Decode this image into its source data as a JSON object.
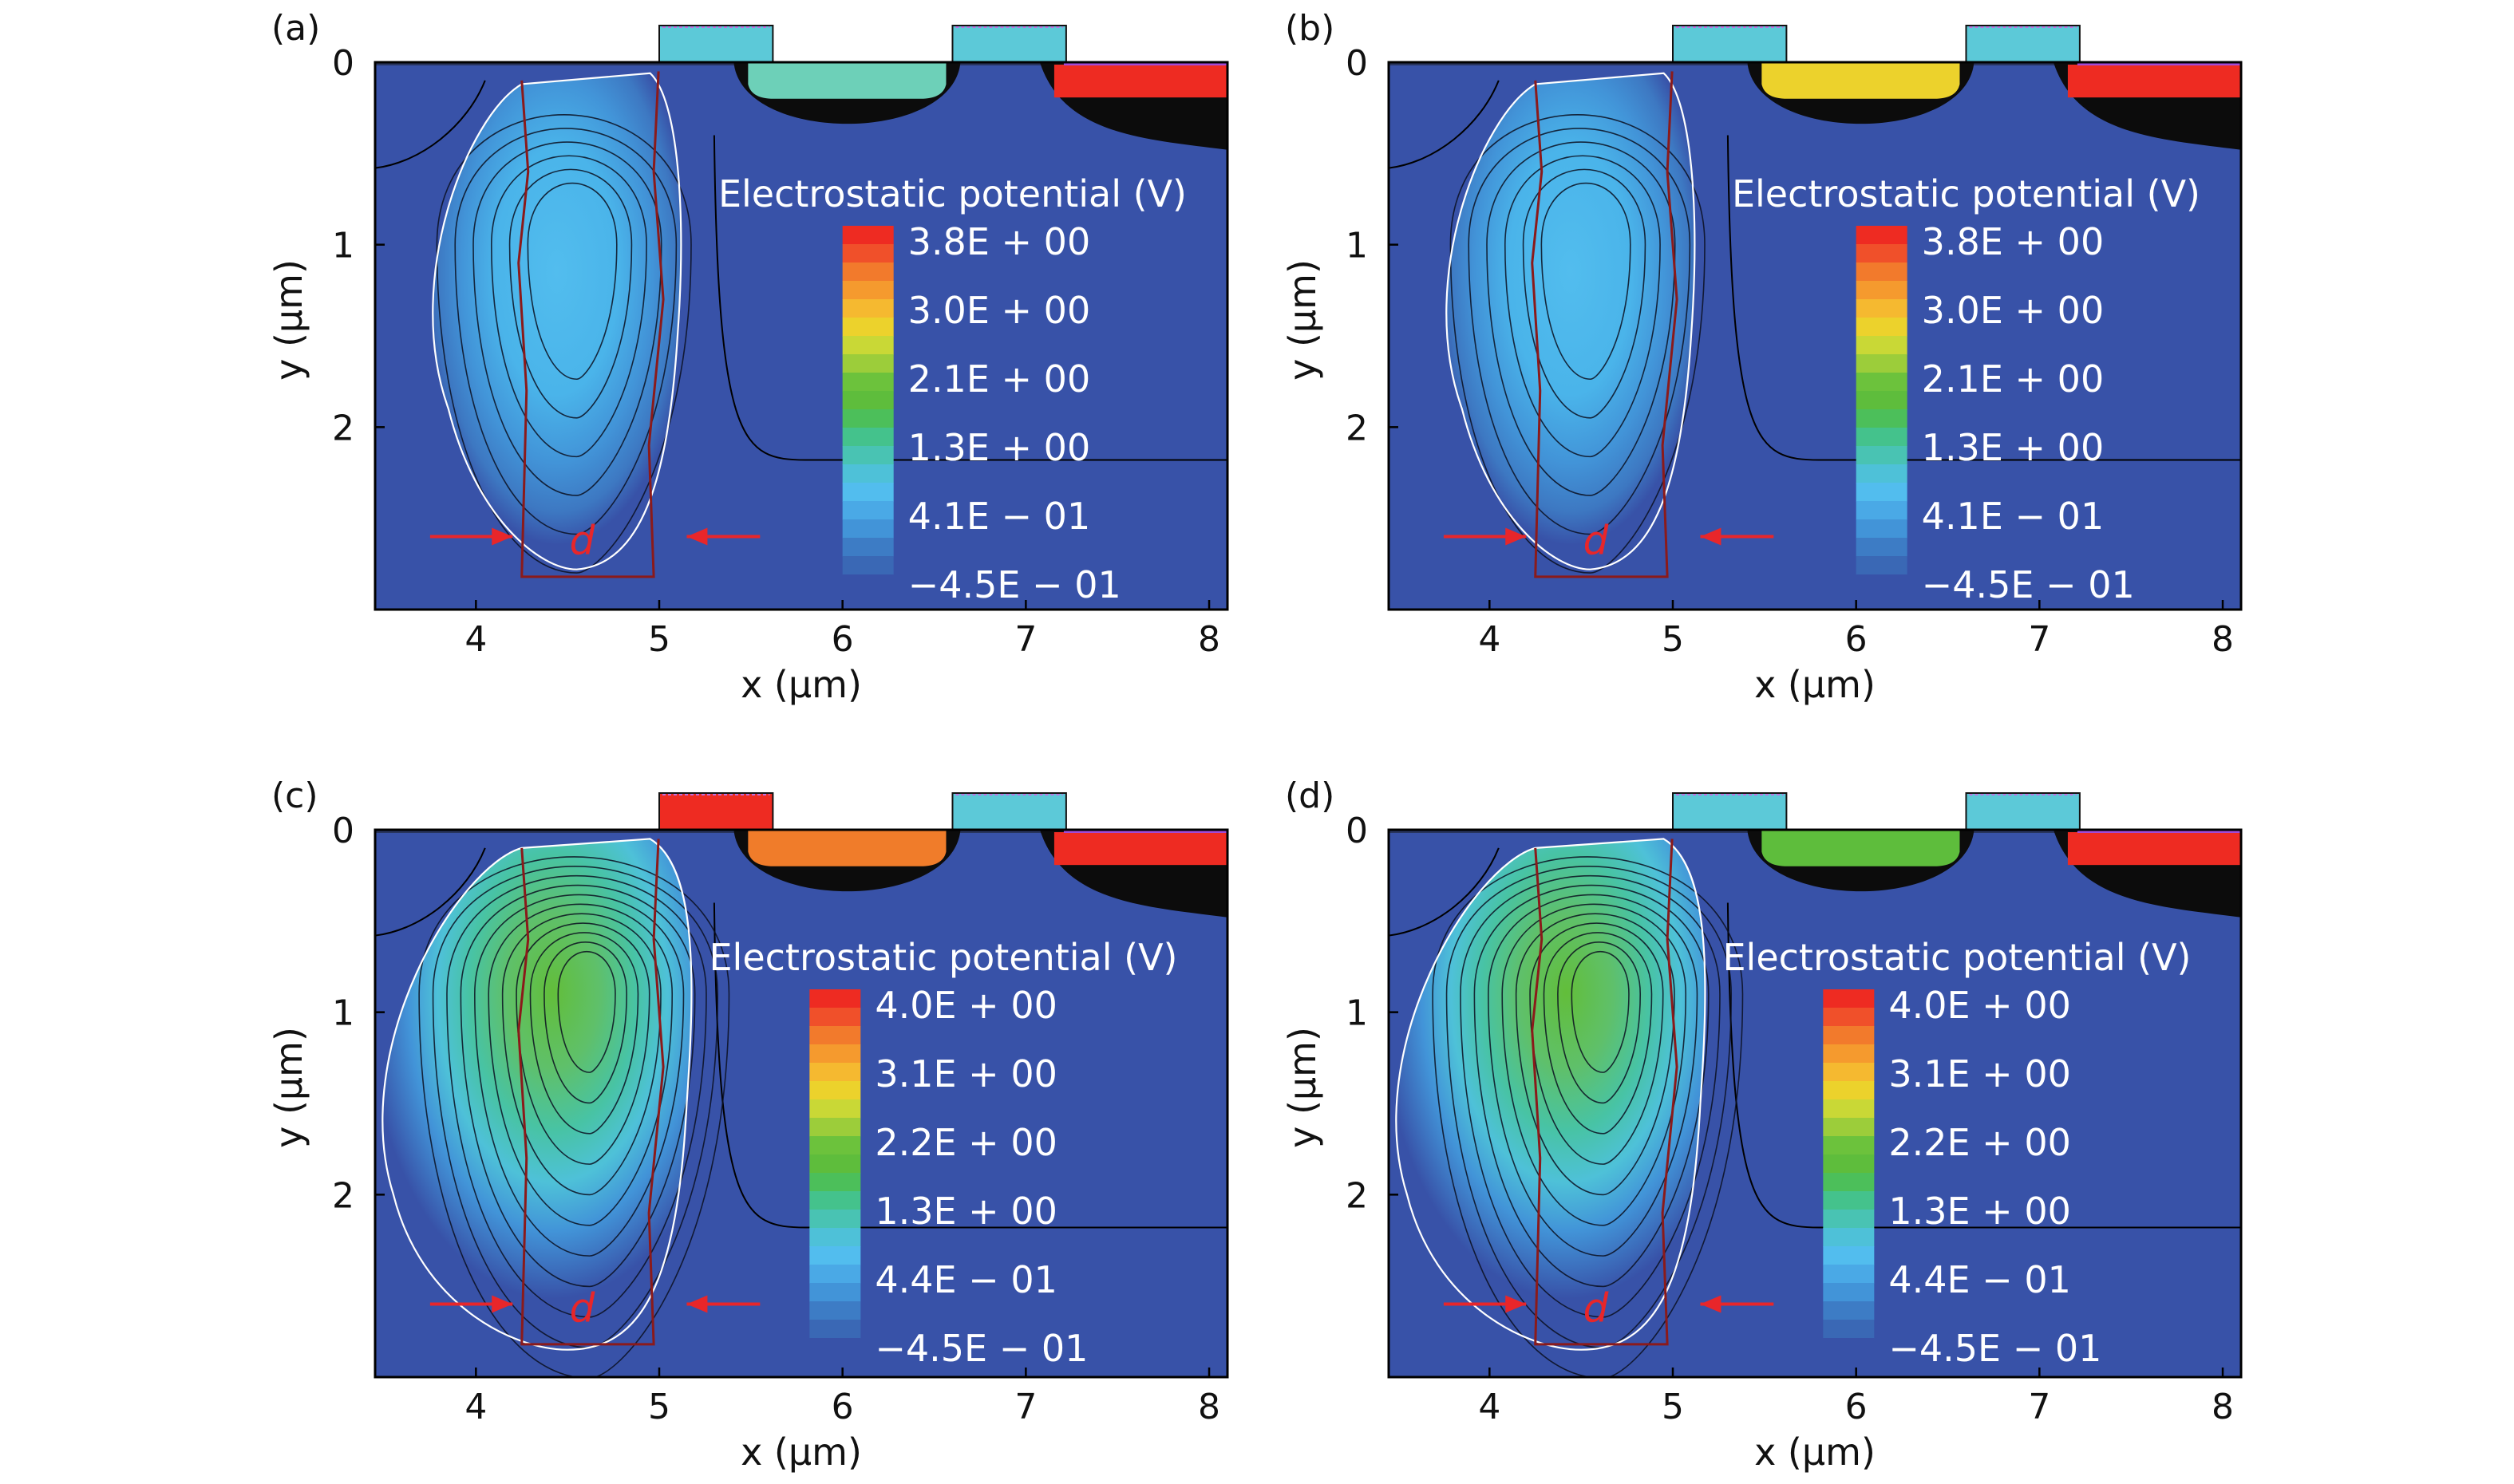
{
  "chart_data": [
    {
      "type": "heatmap",
      "panel": "(a)",
      "title": "",
      "xlabel": "x (μm)",
      "ylabel": "y (μm)",
      "x_ticks": [
        "4",
        "5",
        "6",
        "7",
        "8"
      ],
      "y_ticks": [
        "0",
        "1",
        "2"
      ],
      "xlim": [
        3.45,
        8.1
      ],
      "ylim": [
        0,
        3.0
      ],
      "legend_title": "Electrostatic potential (V)",
      "legend_labels": [
        "3.8E + 00",
        "3.0E + 00",
        "2.1E + 00",
        "1.3E + 00",
        "4.1E − 01",
        "−4.5E − 01"
      ],
      "annotation": "d",
      "peak_region": {
        "color": "#52bdee"
      },
      "top_pockets": [
        {
          "x_center": 6.0,
          "color": "#6dd0b8"
        },
        {
          "x_center": 7.75,
          "color": "#ee2b22"
        }
      ],
      "gates": [
        {
          "x_center": 4.6,
          "color": "#5cc9d8"
        },
        {
          "x_center": 6.2,
          "color": "#5cc9d8"
        }
      ]
    },
    {
      "type": "heatmap",
      "panel": "(b)",
      "title": "",
      "xlabel": "x (μm)",
      "ylabel": "y (μm)",
      "x_ticks": [
        "4",
        "5",
        "6",
        "7",
        "8"
      ],
      "y_ticks": [
        "0",
        "1",
        "2"
      ],
      "xlim": [
        3.45,
        8.1
      ],
      "ylim": [
        0,
        3.0
      ],
      "legend_title": "Electrostatic potential (V)",
      "legend_labels": [
        "3.8E + 00",
        "3.0E + 00",
        "2.1E + 00",
        "1.3E + 00",
        "4.1E − 01",
        "−4.5E − 01"
      ],
      "annotation": "d",
      "peak_region": {
        "color": "#52bdee"
      },
      "top_pockets": [
        {
          "x_center": 6.0,
          "color": "#ecd22c"
        },
        {
          "x_center": 7.75,
          "color": "#ee2b22"
        }
      ],
      "gates": [
        {
          "x_center": 4.6,
          "color": "#5cc9d8"
        },
        {
          "x_center": 6.2,
          "color": "#5cc9d8"
        }
      ]
    },
    {
      "type": "heatmap",
      "panel": "(c)",
      "title": "",
      "xlabel": "x (μm)",
      "ylabel": "y (μm)",
      "x_ticks": [
        "4",
        "5",
        "6",
        "7",
        "8"
      ],
      "y_ticks": [
        "0",
        "1",
        "2"
      ],
      "xlim": [
        3.45,
        8.1
      ],
      "ylim": [
        0,
        3.0
      ],
      "legend_title": "Electrostatic potential (V)",
      "legend_labels": [
        "4.0E + 00",
        "3.1E + 00",
        "2.2E + 00",
        "1.3E + 00",
        "4.4E − 01",
        "−4.5E − 01"
      ],
      "annotation": "d",
      "peak_region": {
        "color": "#62be3a"
      },
      "top_pockets": [
        {
          "x_center": 6.0,
          "color": "#f07c2a"
        },
        {
          "x_center": 7.75,
          "color": "#ee2b22"
        }
      ],
      "gates": [
        {
          "x_center": 4.6,
          "color": "#ee2b22"
        },
        {
          "x_center": 6.2,
          "color": "#5cc9d8"
        }
      ]
    },
    {
      "type": "heatmap",
      "panel": "(d)",
      "title": "",
      "xlabel": "x (μm)",
      "ylabel": "y (μm)",
      "x_ticks": [
        "4",
        "5",
        "6",
        "7",
        "8"
      ],
      "y_ticks": [
        "0",
        "1",
        "2"
      ],
      "xlim": [
        3.45,
        8.1
      ],
      "ylim": [
        0,
        3.0
      ],
      "legend_title": "Electrostatic potential (V)",
      "legend_labels": [
        "4.0E + 00",
        "3.1E + 00",
        "2.2E + 00",
        "1.3E + 00",
        "4.4E − 01",
        "−4.5E − 01"
      ],
      "annotation": "d",
      "peak_region": {
        "color": "#62be3a"
      },
      "top_pockets": [
        {
          "x_center": 6.0,
          "color": "#5ebd3c"
        },
        {
          "x_center": 7.75,
          "color": "#ee2b22"
        }
      ],
      "gates": [
        {
          "x_center": 4.6,
          "color": "#5cc9d8"
        },
        {
          "x_center": 6.2,
          "color": "#5cc9d8"
        }
      ]
    }
  ],
  "colors": {
    "background": "#3852a8",
    "frame": "#000000",
    "arrow": "#e8262a",
    "colorbar": [
      "#ee2b22",
      "#f0502a",
      "#f27a2c",
      "#f59a2e",
      "#f5b930",
      "#ecd22c",
      "#c9d836",
      "#9ccd3a",
      "#6cc23c",
      "#5ebd3c",
      "#4cbf5a",
      "#44c28c",
      "#49c3b3",
      "#4ec1d8",
      "#52bdee",
      "#4aa9e6",
      "#4294d8",
      "#3d7cc5",
      "#3a68b5",
      "#3852a8"
    ]
  }
}
